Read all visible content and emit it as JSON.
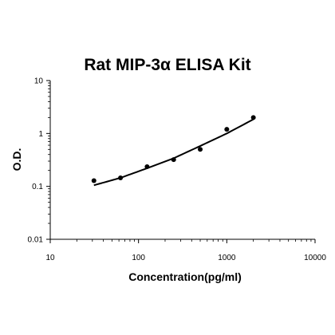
{
  "chart_data": {
    "type": "scatter",
    "title": "Rat MIP-3α ELISA Kit",
    "xlabel": "Concentration(pg/ml)",
    "ylabel": "O.D.",
    "xscale": "log",
    "yscale": "log",
    "xlim": [
      10,
      10000
    ],
    "ylim": [
      0.01,
      10
    ],
    "x_ticks": [
      "10",
      "100",
      "1000",
      "10000"
    ],
    "y_ticks": [
      "0.01",
      "0.1",
      "1",
      "10"
    ],
    "grid": false,
    "legend": "none",
    "points": [
      {
        "x": 31.25,
        "y": 0.128
      },
      {
        "x": 62.5,
        "y": 0.145
      },
      {
        "x": 125,
        "y": 0.235
      },
      {
        "x": 250,
        "y": 0.32
      },
      {
        "x": 500,
        "y": 0.5
      },
      {
        "x": 1000,
        "y": 1.2
      },
      {
        "x": 2000,
        "y": 2.0
      }
    ],
    "fit_curve": {
      "x": [
        31.25,
        62.5,
        125,
        250,
        500,
        1000,
        2000
      ],
      "y": [
        0.105,
        0.145,
        0.22,
        0.34,
        0.58,
        1.0,
        1.85
      ]
    },
    "colors": {
      "points": "#000000",
      "curve": "#000000",
      "axes": "#000000"
    }
  }
}
